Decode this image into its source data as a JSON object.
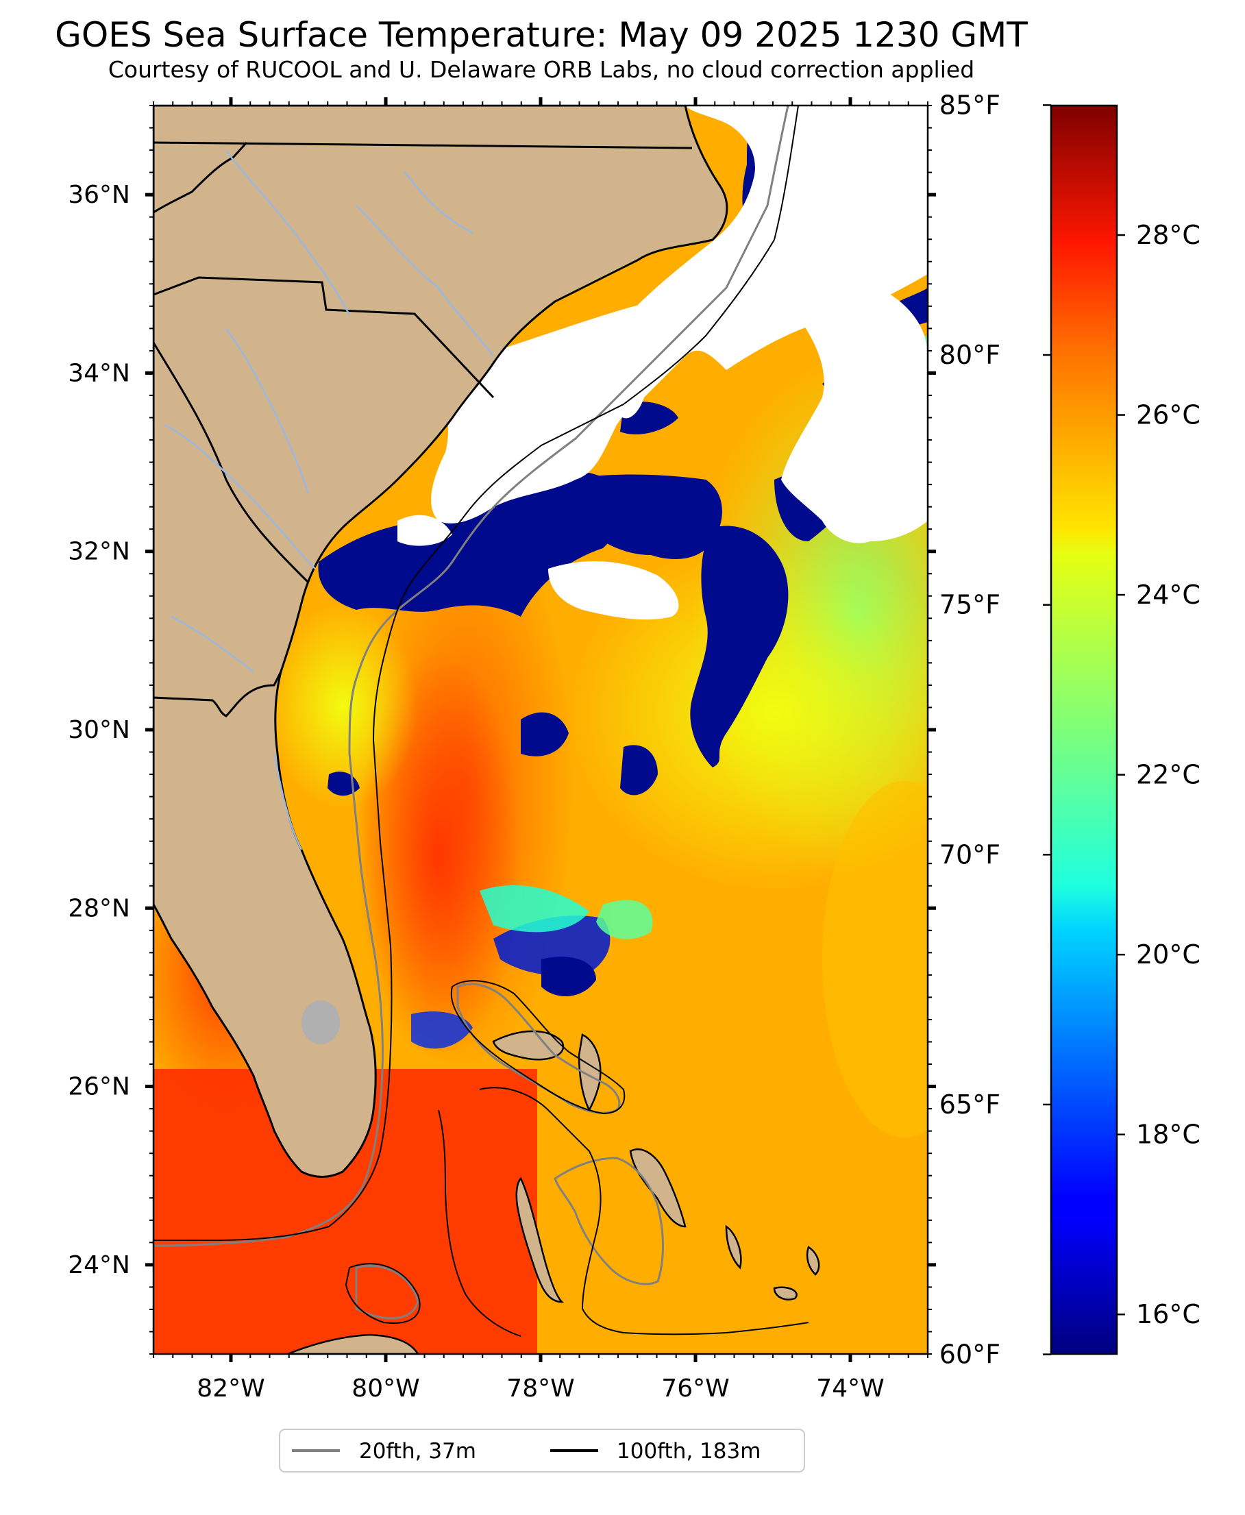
{
  "title": "GOES Sea Surface Temperature: May 09 2025 1230 GMT",
  "subtitle": "Courtesy of RUCOOL and U. Delaware ORB Labs, no cloud correction applied",
  "map": {
    "lon_range": [
      -83.0,
      -73.0
    ],
    "lat_range": [
      23.0,
      37.0
    ],
    "lat_ticks": [
      {
        "value": 24,
        "label": "24°N"
      },
      {
        "value": 26,
        "label": "26°N"
      },
      {
        "value": 28,
        "label": "28°N"
      },
      {
        "value": 30,
        "label": "30°N"
      },
      {
        "value": 32,
        "label": "32°N"
      },
      {
        "value": 34,
        "label": "34°N"
      },
      {
        "value": 36,
        "label": "36°N"
      }
    ],
    "lon_ticks": [
      {
        "value": -82,
        "label": "82°W"
      },
      {
        "value": -80,
        "label": "80°W"
      },
      {
        "value": -78,
        "label": "78°W"
      },
      {
        "value": -76,
        "label": "76°W"
      },
      {
        "value": -74,
        "label": "74°W"
      }
    ],
    "colors": {
      "land": "#d2b48c",
      "cloud": "#ffffff",
      "state_border": "#000000",
      "river": "#9ab8e0",
      "isobath_20fth": "#808080",
      "isobath_100fth": "#000000"
    }
  },
  "colorbar": {
    "colormap": "jet",
    "celsius_range": [
      15.56,
      29.44
    ],
    "celsius_ticks": [
      {
        "value": 16,
        "label": "16°C"
      },
      {
        "value": 18,
        "label": "18°C"
      },
      {
        "value": 20,
        "label": "20°C"
      },
      {
        "value": 22,
        "label": "22°C"
      },
      {
        "value": 24,
        "label": "24°C"
      },
      {
        "value": 26,
        "label": "26°C"
      },
      {
        "value": 28,
        "label": "28°C"
      }
    ],
    "fahrenheit_ticks": [
      {
        "value": 60,
        "label": "60°F"
      },
      {
        "value": 65,
        "label": "65°F"
      },
      {
        "value": 70,
        "label": "70°F"
      },
      {
        "value": 75,
        "label": "75°F"
      },
      {
        "value": 80,
        "label": "80°F"
      },
      {
        "value": 85,
        "label": "85°F"
      }
    ]
  },
  "legend": {
    "items": [
      {
        "label": "20fth, 37m",
        "color": "#808080"
      },
      {
        "label": "100fth, 183m",
        "color": "#000000"
      }
    ]
  }
}
